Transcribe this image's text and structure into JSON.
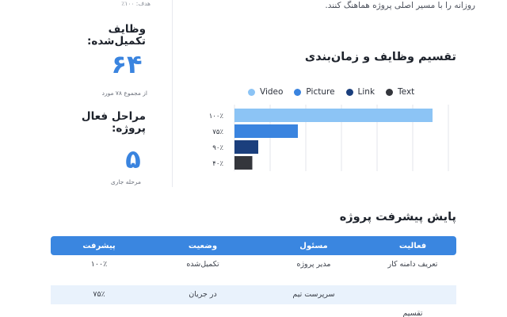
{
  "top_note": "روزانه را با مسیر اصلی پروژه هماهنگ کنند.",
  "stats": {
    "top_caption": "هدف: ۱۰۰٪",
    "completed_label": "وظایف تکمیل‌شده:",
    "completed_value": "۶۴",
    "completed_sub": "از مجموع ۷۸ مورد",
    "active_label": "مراحل فعال پروژه:",
    "active_value": "۵",
    "active_sub": "مرحله جاری"
  },
  "chart_title": "تقسیم وظایف و زمان‌بندی",
  "chart_data": {
    "type": "bar",
    "orientation": "horizontal",
    "categories": [
      "۱۰۰٪",
      "۷۵٪",
      "۹۰٪",
      "۴۰٪"
    ],
    "legend": [
      "Video",
      "Picture",
      "Link",
      "Text"
    ],
    "colors": [
      "#8cc4f5",
      "#3a84df",
      "#1b3f7d",
      "#34363c"
    ],
    "values": [
      100,
      32,
      12,
      9
    ],
    "xlim": [
      0,
      108
    ],
    "grid": true,
    "legend_position": "top"
  },
  "progress": {
    "title": "پایش پیشرفت پروژه",
    "columns": [
      "فعالیت",
      "مسئول",
      "وضعیت",
      "پیشرفت"
    ],
    "rows": [
      [
        "تعریف دامنه کار",
        "مدیر پروژه",
        "تکمیل‌شده",
        "۱۰۰٪"
      ],
      [
        "",
        "سرپرست تیم",
        "در جریان",
        "۷۵٪"
      ],
      [
        "تقسیم",
        "",
        "",
        ""
      ]
    ]
  }
}
